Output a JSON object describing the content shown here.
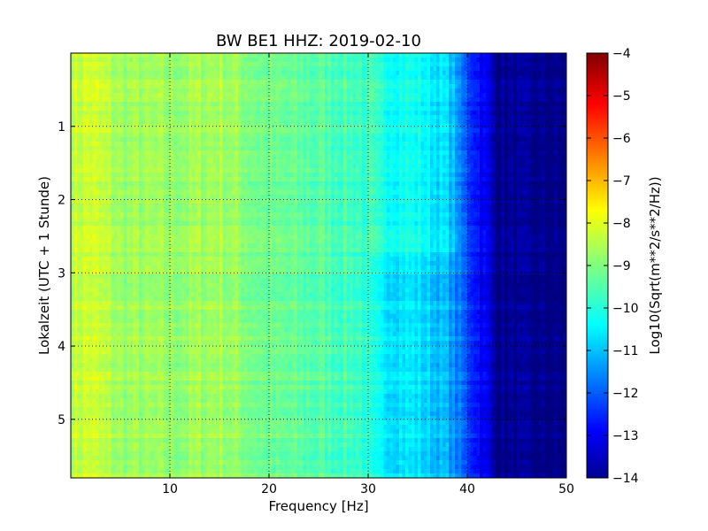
{
  "chart_data": {
    "type": "heatmap",
    "title": "BW BE1 HHZ: 2019-02-10",
    "xlabel": "Frequency [Hz]",
    "ylabel": "Lokalzeit (UTC + 1 Stunde)",
    "xlim": [
      0,
      50
    ],
    "ylim": [
      0,
      5.8
    ],
    "y_inverted": true,
    "x_ticks": [
      10,
      20,
      30,
      40,
      50
    ],
    "y_ticks": [
      1,
      2,
      3,
      4,
      5
    ],
    "grid": "dotted",
    "colormap": "jet",
    "colorbar": {
      "label": "Log10(Sqrt(m**2/s**2/Hz))",
      "range": [
        -14,
        -4
      ],
      "ticks": [
        -4,
        -5,
        -6,
        -7,
        -8,
        -9,
        -10,
        -11,
        -12,
        -13,
        -14
      ]
    },
    "spectrum_profile": [
      {
        "f": 0,
        "v": -8.4
      },
      {
        "f": 2,
        "v": -8.2
      },
      {
        "f": 5,
        "v": -8.7
      },
      {
        "f": 10,
        "v": -8.8
      },
      {
        "f": 15,
        "v": -8.6
      },
      {
        "f": 20,
        "v": -9.2
      },
      {
        "f": 25,
        "v": -9.4
      },
      {
        "f": 29,
        "v": -9.6
      },
      {
        "f": 31,
        "v": -10.3
      },
      {
        "f": 35,
        "v": -10.5
      },
      {
        "f": 38,
        "v": -11.0
      },
      {
        "f": 40,
        "v": -12.0
      },
      {
        "f": 42,
        "v": -13.0
      },
      {
        "f": 43,
        "v": -13.8
      },
      {
        "f": 50,
        "v": -14.0
      }
    ]
  }
}
